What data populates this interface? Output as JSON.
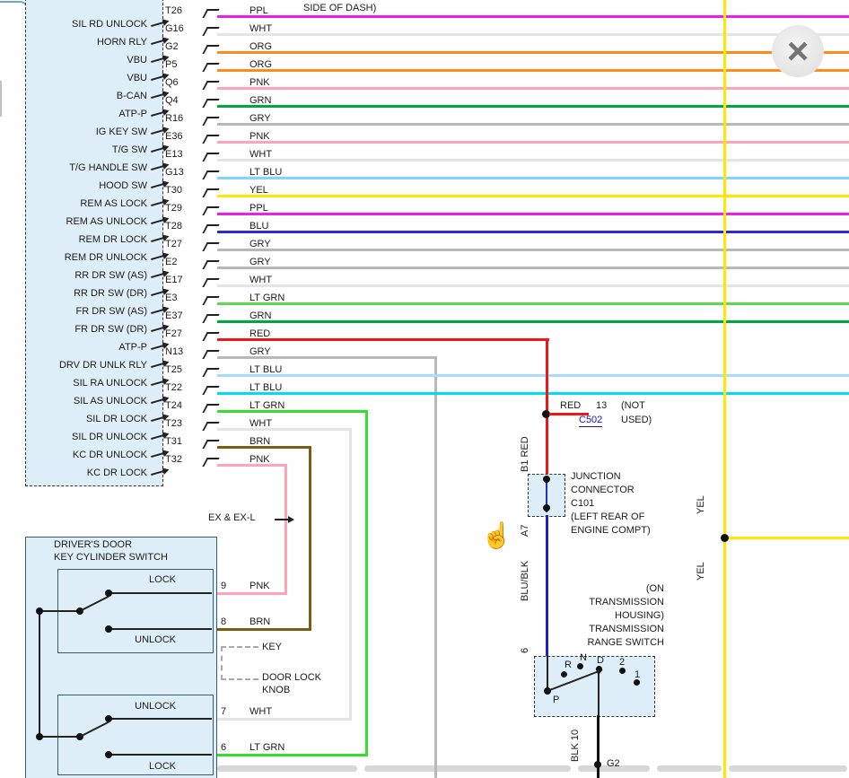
{
  "window": {
    "close_icon_glyph": "×"
  },
  "cursor": {
    "glyph": "☝"
  },
  "top_note": "SIDE OF DASH)",
  "left_connector": {
    "rows": [
      {
        "label": "SIL RD UNLOCK",
        "pin": "T26",
        "color": "PPL",
        "hex": "#ea1fea"
      },
      {
        "label": "HORN RLY",
        "pin": "G16",
        "color": "WHT",
        "hex": "#e4e4e4"
      },
      {
        "label": "VBU",
        "pin": "G2",
        "color": "ORG",
        "hex": "#ff8c1a"
      },
      {
        "label": "VBU",
        "pin": "P5",
        "color": "ORG",
        "hex": "#ff8c1a"
      },
      {
        "label": "B-CAN",
        "pin": "Q6",
        "color": "PNK",
        "hex": "#ffa3b8"
      },
      {
        "label": "ATP-P",
        "pin": "Q4",
        "color": "GRN",
        "hex": "#00a643"
      },
      {
        "label": "IG KEY SW",
        "pin": "R16",
        "color": "GRY",
        "hex": "#b8b8b8"
      },
      {
        "label": "T/G SW",
        "pin": "E36",
        "color": "PNK",
        "hex": "#ffa3b8"
      },
      {
        "label": "T/G HANDLE SW",
        "pin": "E13",
        "color": "WHT",
        "hex": "#e4e4e4"
      },
      {
        "label": "HOOD SW",
        "pin": "G13",
        "color": "LT BLU",
        "hex": "#7cd6ff"
      },
      {
        "label": "REM AS LOCK",
        "pin": "T30",
        "color": "YEL",
        "hex": "#ffe800"
      },
      {
        "label": "REM AS UNLOCK",
        "pin": "T29",
        "color": "PPL",
        "hex": "#ea1fea"
      },
      {
        "label": "REM DR LOCK",
        "pin": "T28",
        "color": "BLU",
        "hex": "#2a2ad4"
      },
      {
        "label": "REM DR UNLOCK",
        "pin": "T27",
        "color": "GRY",
        "hex": "#b8b8b8"
      },
      {
        "label": "RR DR SW (AS)",
        "pin": "E2",
        "color": "GRY",
        "hex": "#b8b8b8"
      },
      {
        "label": "RR DR SW (DR)",
        "pin": "E17",
        "color": "WHT",
        "hex": "#e4e4e4"
      },
      {
        "label": "FR DR SW (AS)",
        "pin": "E3",
        "color": "LT GRN",
        "hex": "#5fd84f"
      },
      {
        "label": "FR DR SW (DR)",
        "pin": "E37",
        "color": "GRN",
        "hex": "#00a643"
      },
      {
        "label": "ATP-P",
        "pin": "F27",
        "color": "RED",
        "hex": "#f11515"
      },
      {
        "label": "DRV DR UNLK RLY",
        "pin": "N13",
        "color": "GRY",
        "hex": "#b8b8b8"
      },
      {
        "label": "SIL RA UNLOCK",
        "pin": "T25",
        "color": "LT BLU",
        "hex": "#a8dcff"
      },
      {
        "label": "SIL AS UNLOCK",
        "pin": "T22",
        "color": "LT BLU",
        "hex": "#00dcf0"
      },
      {
        "label": "SIL DR LOCK",
        "pin": "T24",
        "color": "LT GRN",
        "hex": "#35df2f"
      },
      {
        "label": "SIL DR UNLOCK",
        "pin": "T23",
        "color": "WHT",
        "hex": "#e4e4e4"
      },
      {
        "label": "KC DR UNLOCK",
        "pin": "T31",
        "color": "BRN",
        "hex": "#7d5a10"
      },
      {
        "label": "KC DR LOCK",
        "pin": "T32",
        "color": "PNK",
        "hex": "#ffa3b8"
      }
    ]
  },
  "red_branch": {
    "color": "RED",
    "pin": "13",
    "connector": "C502",
    "note1": "(NOT",
    "note2": "USED)"
  },
  "junction": {
    "line1": "JUNCTION",
    "line2": "CONNECTOR",
    "line3": "C101",
    "line4": "(LEFT REAR OF",
    "line5": "ENGINE COMPT)"
  },
  "vertical_labels": {
    "red_in": "B1  RED",
    "junction_out": "A7",
    "blu_blk": "BLU/BLK",
    "trs_pin": "6",
    "blk_out": "BLK  10",
    "yel_upper": "YEL",
    "yel_lower": "YEL"
  },
  "trs": {
    "note1": "(ON",
    "note2": "TRANSMISSION",
    "note3": "HOUSING)",
    "note4": "TRANSMISSION",
    "note5": "RANGE SWITCH",
    "positions": {
      "r": "R",
      "n": "N",
      "d": "D",
      "two": "2",
      "one": "1",
      "p": "P"
    }
  },
  "ex_note": "EX & EX-L",
  "door_switch": {
    "title1": "DRIVER'S DOOR",
    "title2": "KEY CYLINDER SWITCH",
    "sw1_top": "LOCK",
    "sw1_bottom": "UNLOCK",
    "sw2_top": "UNLOCK",
    "sw2_bottom": "LOCK",
    "key_label": "KEY",
    "knob_label1": "DOOR LOCK",
    "knob_label2": "KNOB",
    "pins": [
      {
        "pin": "9",
        "color": "PNK",
        "hex": "#ffa3b8"
      },
      {
        "pin": "8",
        "color": "BRN",
        "hex": "#7d5a10"
      },
      {
        "pin": "7",
        "color": "WHT",
        "hex": "#e4e4e4"
      },
      {
        "pin": "6",
        "color": "LT GRN",
        "hex": "#35df2f"
      }
    ]
  },
  "bottom": {
    "ground_label": "G2"
  }
}
